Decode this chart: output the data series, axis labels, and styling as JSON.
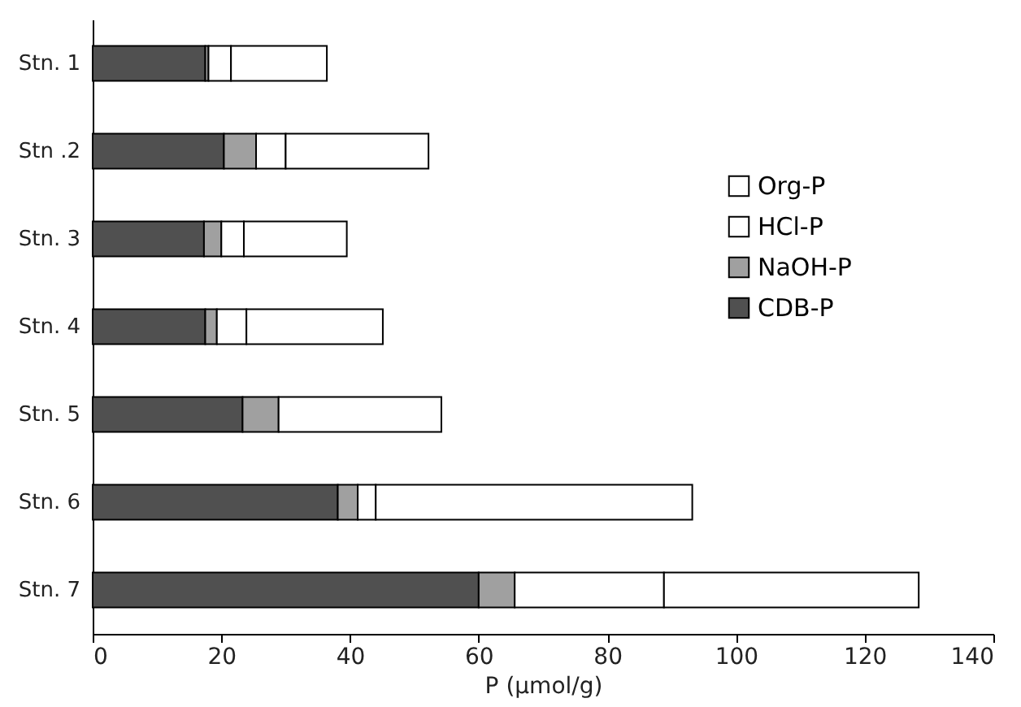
{
  "chart_data": {
    "type": "bar",
    "orientation": "horizontal",
    "stacked": true,
    "xlabel": "P (μmol/g)",
    "categories": [
      "Stn. 1",
      "Stn .2",
      "Stn. 3",
      "Stn. 4",
      "Stn. 5",
      "Stn. 6",
      "Stn. 7"
    ],
    "series": [
      {
        "name": "CDB-P",
        "color": "#505050",
        "values": [
          17.5,
          20.4,
          17.3,
          17.5,
          23.3,
          38.1,
          60.0
        ]
      },
      {
        "name": "NaOH-P",
        "color": "#a0a0a0",
        "values": [
          0.5,
          5.0,
          2.7,
          1.8,
          5.6,
          3.1,
          5.6
        ]
      },
      {
        "name": "HCl-P",
        "color": "#ffffff",
        "values": [
          3.5,
          4.6,
          3.5,
          4.6,
          null,
          2.8,
          23.2
        ]
      },
      {
        "name": "Org-P",
        "color": "#ffffff",
        "values": [
          14.9,
          22.2,
          16.0,
          21.2,
          25.3,
          49.2,
          39.6
        ]
      }
    ],
    "xlim": [
      0,
      140
    ],
    "xticks": [
      0,
      20,
      40,
      60,
      80,
      100,
      120,
      140
    ],
    "grid": false,
    "legend": "right"
  }
}
